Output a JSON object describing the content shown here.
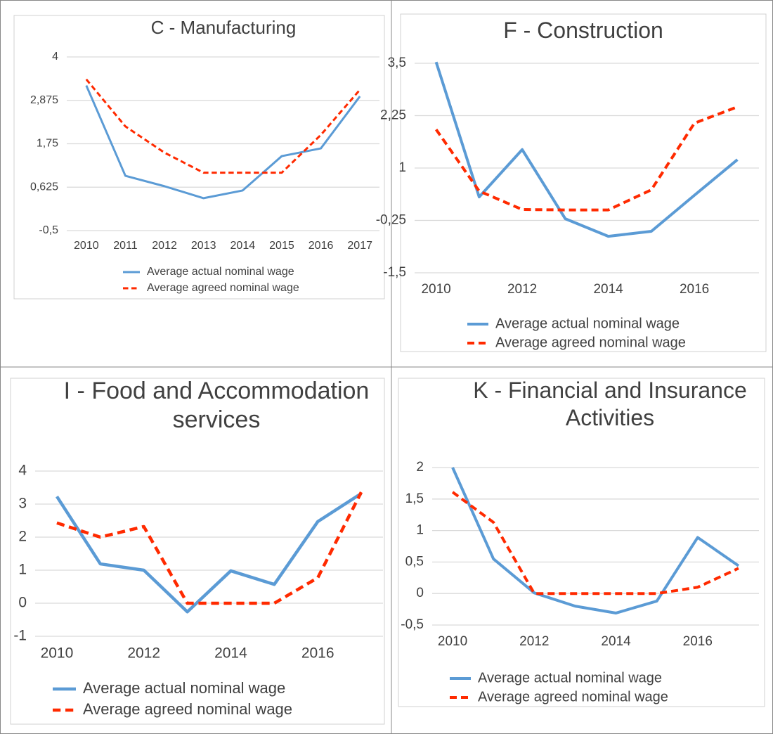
{
  "chart_data": [
    {
      "type": "line",
      "title": "C - Manufacturing",
      "x": [
        2010,
        2011,
        2012,
        2013,
        2014,
        2015,
        2016,
        2017
      ],
      "xlim": [
        2009.5,
        2017.5
      ],
      "xticks": [
        2010,
        2011,
        2012,
        2013,
        2014,
        2015,
        2016,
        2017
      ],
      "ylim": [
        -0.5,
        4
      ],
      "yticks": [
        {
          "value": -0.5,
          "label": "-0,5"
        },
        {
          "value": 0.625,
          "label": "0,625"
        },
        {
          "value": 1.75,
          "label": "1,75"
        },
        {
          "value": 2.875,
          "label": "2,875"
        },
        4
      ],
      "grid": true,
      "series": [
        {
          "name": "Average actual nominal wage",
          "color": "#5b9bd5",
          "style": "solid",
          "values": [
            3.26,
            0.92,
            0.65,
            0.34,
            0.54,
            1.43,
            1.63,
            2.98
          ]
        },
        {
          "name": "Average agreed nominal wage",
          "color": "#ff2a00",
          "style": "dashed",
          "values": [
            3.42,
            2.2,
            1.52,
            1.0,
            1.0,
            1.0,
            1.98,
            3.15
          ]
        }
      ]
    },
    {
      "type": "line",
      "title": "F - Construction",
      "x": [
        2010,
        2011,
        2012,
        2013,
        2014,
        2015,
        2016,
        2017
      ],
      "xlim": [
        2009.5,
        2017.5
      ],
      "xticks": [
        2010,
        2012,
        2014,
        2016
      ],
      "ylim": [
        -1.5,
        3.5
      ],
      "yticks": [
        {
          "value": -1.5,
          "label": "-1,5"
        },
        {
          "value": -0.25,
          "label": "-0,25"
        },
        1,
        {
          "value": 2.25,
          "label": "2,25"
        },
        {
          "value": 3.5,
          "label": "3,5"
        }
      ],
      "grid": true,
      "series": [
        {
          "name": "Average actual nominal wage",
          "color": "#5b9bd5",
          "style": "solid",
          "values": [
            3.53,
            0.31,
            1.44,
            -0.21,
            -0.63,
            -0.51,
            0.35,
            1.2
          ]
        },
        {
          "name": "Average agreed nominal wage",
          "color": "#ff2a00",
          "style": "dashed",
          "values": [
            1.92,
            0.45,
            0.01,
            0.0,
            0.0,
            0.48,
            2.07,
            2.46
          ]
        }
      ]
    },
    {
      "type": "line",
      "title": "I - Food and Accommodation services",
      "x": [
        2010,
        2011,
        2012,
        2013,
        2014,
        2015,
        2016,
        2017
      ],
      "xlim": [
        2009.5,
        2017.5
      ],
      "xticks": [
        2010,
        2012,
        2014,
        2016
      ],
      "ylim": [
        -1,
        4
      ],
      "yticks": [
        -1,
        0,
        1,
        2,
        3,
        4
      ],
      "grid": true,
      "series": [
        {
          "name": "Average actual nominal wage",
          "color": "#5b9bd5",
          "style": "solid",
          "values": [
            3.23,
            1.19,
            1.0,
            -0.26,
            0.98,
            0.57,
            2.47,
            3.32
          ]
        },
        {
          "name": "Average agreed nominal wage",
          "color": "#ff2a00",
          "style": "dashed",
          "values": [
            2.43,
            2.0,
            2.32,
            0,
            0,
            0,
            0.77,
            3.36
          ]
        }
      ]
    },
    {
      "type": "line",
      "title": "K - Financial and Insurance Activities",
      "x": [
        2010,
        2011,
        2012,
        2013,
        2014,
        2015,
        2016,
        2017
      ],
      "xlim": [
        2009.5,
        2017.5
      ],
      "xticks": [
        2010,
        2012,
        2014,
        2016
      ],
      "ylim": [
        -0.5,
        2
      ],
      "yticks": [
        {
          "value": -0.5,
          "label": "-0,5"
        },
        0,
        {
          "value": 0.5,
          "label": "0,5"
        },
        1,
        {
          "value": 1.5,
          "label": "1,5"
        },
        2
      ],
      "grid": true,
      "series": [
        {
          "name": "Average actual nominal wage",
          "color": "#5b9bd5",
          "style": "solid",
          "values": [
            2.0,
            0.55,
            0.01,
            -0.2,
            -0.31,
            -0.12,
            0.89,
            0.44
          ]
        },
        {
          "name": "Average agreed nominal wage",
          "color": "#ff2a00",
          "style": "dashed",
          "values": [
            1.61,
            1.13,
            0,
            0,
            0,
            0,
            0.1,
            0.4
          ]
        }
      ]
    }
  ]
}
